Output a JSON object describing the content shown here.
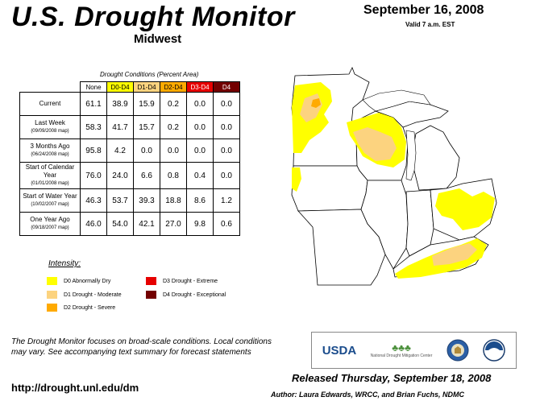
{
  "header": {
    "title": "U.S. Drought Monitor",
    "region": "Midwest",
    "date": "September 16, 2008",
    "valid": "Valid 7 a.m. EST"
  },
  "table": {
    "caption": "Drought Conditions (Percent Area)",
    "columns": [
      {
        "label": "None",
        "color": "#ffffff"
      },
      {
        "label": "D0-D4",
        "color": "#ffff00"
      },
      {
        "label": "D1-D4",
        "color": "#fcd37f"
      },
      {
        "label": "D2-D4",
        "color": "#ffaa00"
      },
      {
        "label": "D3-D4",
        "color": "#e60000"
      },
      {
        "label": "D4",
        "color": "#730000"
      }
    ],
    "rows": [
      {
        "label": "Current",
        "sub": "",
        "values": [
          "61.1",
          "38.9",
          "15.9",
          "0.2",
          "0.0",
          "0.0"
        ]
      },
      {
        "label": "Last Week",
        "sub": "(09/09/2008 map)",
        "values": [
          "58.3",
          "41.7",
          "15.7",
          "0.2",
          "0.0",
          "0.0"
        ]
      },
      {
        "label": "3 Months Ago",
        "sub": "(06/24/2008 map)",
        "values": [
          "95.8",
          "4.2",
          "0.0",
          "0.0",
          "0.0",
          "0.0"
        ]
      },
      {
        "label": "Start of Calendar Year",
        "sub": "(01/01/2008 map)",
        "values": [
          "76.0",
          "24.0",
          "6.6",
          "0.8",
          "0.4",
          "0.0"
        ]
      },
      {
        "label": "Start of Water Year",
        "sub": "(10/02/2007 map)",
        "values": [
          "46.3",
          "53.7",
          "39.3",
          "18.8",
          "8.6",
          "1.2"
        ]
      },
      {
        "label": "One Year Ago",
        "sub": "(09/18/2007 map)",
        "values": [
          "46.0",
          "54.0",
          "42.1",
          "27.0",
          "9.8",
          "0.6"
        ]
      }
    ]
  },
  "legend": {
    "title": "Intensity:",
    "items": [
      {
        "label": "D0 Abnormally Dry",
        "color": "#ffff00"
      },
      {
        "label": "D1 Drought - Moderate",
        "color": "#fcd37f"
      },
      {
        "label": "D2 Drought - Severe",
        "color": "#ffaa00"
      },
      {
        "label": "D3 Drought - Extreme",
        "color": "#e60000"
      },
      {
        "label": "D4 Drought - Exceptional",
        "color": "#730000"
      }
    ]
  },
  "footer": {
    "note": "The Drought Monitor focuses on broad-scale conditions. Local conditions may vary. See accompanying text summary for forecast statements",
    "url": "http://drought.unl.edu/dm",
    "released": "Released Thursday, September 18, 2008",
    "author": "Author: Laura Edwards, WRCC, and Brian Fuchs, NDMC"
  },
  "logos": {
    "usda": "USDA",
    "ndmc": "National Drought Mitigation Center"
  }
}
